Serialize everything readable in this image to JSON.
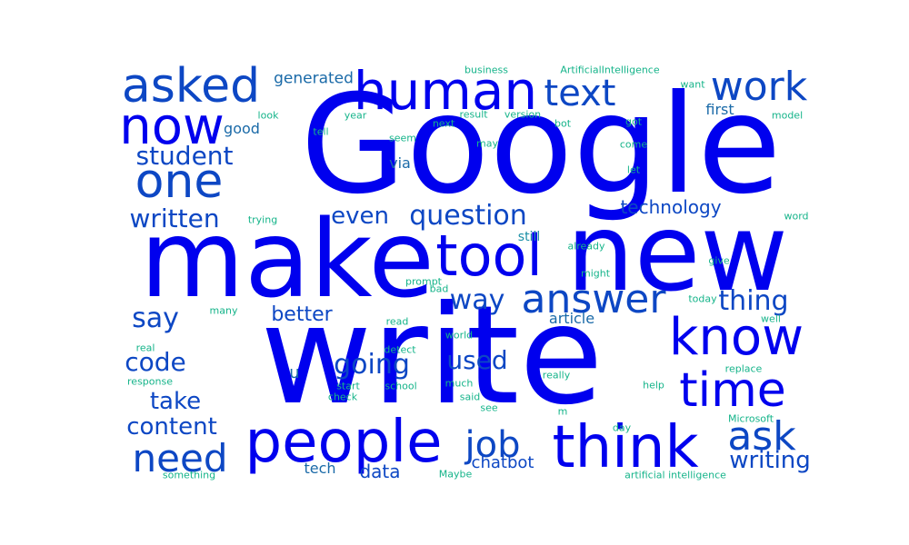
{
  "colors": {
    "background": "#ffffff",
    "large": "#0000ee",
    "medium": "#0d47c4",
    "small": "#1a8fa6",
    "tiny": "#16b48a"
  },
  "words": [
    {
      "text": "Google",
      "weight": 1.0
    },
    {
      "text": "write",
      "weight": 0.98
    },
    {
      "text": "make",
      "weight": 0.9
    },
    {
      "text": "new",
      "weight": 0.88
    },
    {
      "text": "people",
      "weight": 0.5
    },
    {
      "text": "human",
      "weight": 0.46
    },
    {
      "text": "think",
      "weight": 0.5
    },
    {
      "text": "tool",
      "weight": 0.48
    },
    {
      "text": "now",
      "weight": 0.46
    },
    {
      "text": "know",
      "weight": 0.46
    },
    {
      "text": "asked",
      "weight": 0.44
    },
    {
      "text": "time",
      "weight": 0.44
    },
    {
      "text": "one",
      "weight": 0.42
    },
    {
      "text": "answer",
      "weight": 0.4
    },
    {
      "text": "work",
      "weight": 0.36
    },
    {
      "text": "text",
      "weight": 0.36
    },
    {
      "text": "ask",
      "weight": 0.36
    },
    {
      "text": "need",
      "weight": 0.34
    },
    {
      "text": "job",
      "weight": 0.34
    },
    {
      "text": "question",
      "weight": 0.26
    },
    {
      "text": "thing",
      "weight": 0.25
    },
    {
      "text": "way",
      "weight": 0.24
    },
    {
      "text": "say",
      "weight": 0.24
    },
    {
      "text": "going",
      "weight": 0.24
    },
    {
      "text": "student",
      "weight": 0.22
    },
    {
      "text": "written",
      "weight": 0.22
    },
    {
      "text": "code",
      "weight": 0.22
    },
    {
      "text": "used",
      "weight": 0.22
    },
    {
      "text": "even",
      "weight": 0.2
    },
    {
      "text": "take",
      "weight": 0.2
    },
    {
      "text": "content",
      "weight": 0.2
    },
    {
      "text": "better",
      "weight": 0.18
    },
    {
      "text": "writing",
      "weight": 0.2
    },
    {
      "text": "data",
      "weight": 0.16
    },
    {
      "text": "technology",
      "weight": 0.16
    },
    {
      "text": "chatbot",
      "weight": 0.15
    },
    {
      "text": "generated",
      "weight": 0.14
    },
    {
      "text": "article",
      "weight": 0.13
    },
    {
      "text": "first",
      "weight": 0.13
    },
    {
      "text": "good",
      "weight": 0.13
    },
    {
      "text": "via",
      "weight": 0.12
    },
    {
      "text": "tech",
      "weight": 0.12
    },
    {
      "text": "u",
      "weight": 0.12
    },
    {
      "text": "still",
      "weight": 0.1
    },
    {
      "text": "business",
      "weight": 0.08
    },
    {
      "text": "ArtificialIntelligence",
      "weight": 0.08
    },
    {
      "text": "want",
      "weight": 0.07
    },
    {
      "text": "look",
      "weight": 0.07
    },
    {
      "text": "year",
      "weight": 0.07
    },
    {
      "text": "result",
      "weight": 0.07
    },
    {
      "text": "version",
      "weight": 0.07
    },
    {
      "text": "model",
      "weight": 0.07
    },
    {
      "text": "next",
      "weight": 0.07
    },
    {
      "text": "bot",
      "weight": 0.07
    },
    {
      "text": "got",
      "weight": 0.07
    },
    {
      "text": "tell",
      "weight": 0.07
    },
    {
      "text": "seem",
      "weight": 0.07
    },
    {
      "text": "may",
      "weight": 0.07
    },
    {
      "text": "come",
      "weight": 0.07
    },
    {
      "text": "let",
      "weight": 0.07
    },
    {
      "text": "trying",
      "weight": 0.07
    },
    {
      "text": "word",
      "weight": 0.07
    },
    {
      "text": "already",
      "weight": 0.07
    },
    {
      "text": "give",
      "weight": 0.07
    },
    {
      "text": "might",
      "weight": 0.07
    },
    {
      "text": "prompt",
      "weight": 0.07
    },
    {
      "text": "bad",
      "weight": 0.07
    },
    {
      "text": "today",
      "weight": 0.07
    },
    {
      "text": "many",
      "weight": 0.07
    },
    {
      "text": "read",
      "weight": 0.07
    },
    {
      "text": "well",
      "weight": 0.07
    },
    {
      "text": "world",
      "weight": 0.07
    },
    {
      "text": "real",
      "weight": 0.07
    },
    {
      "text": "detect",
      "weight": 0.07
    },
    {
      "text": "response",
      "weight": 0.07
    },
    {
      "text": "start",
      "weight": 0.07
    },
    {
      "text": "school",
      "weight": 0.07
    },
    {
      "text": "much",
      "weight": 0.07
    },
    {
      "text": "really",
      "weight": 0.07
    },
    {
      "text": "replace",
      "weight": 0.07
    },
    {
      "text": "check",
      "weight": 0.07
    },
    {
      "text": "said",
      "weight": 0.07
    },
    {
      "text": "help",
      "weight": 0.07
    },
    {
      "text": "see",
      "weight": 0.07
    },
    {
      "text": "m",
      "weight": 0.07
    },
    {
      "text": "day",
      "weight": 0.07
    },
    {
      "text": "Microsoft",
      "weight": 0.07
    },
    {
      "text": "something",
      "weight": 0.07
    },
    {
      "text": "Maybe",
      "weight": 0.07
    },
    {
      "text": "artificial intelligence",
      "weight": 0.07
    }
  ]
}
